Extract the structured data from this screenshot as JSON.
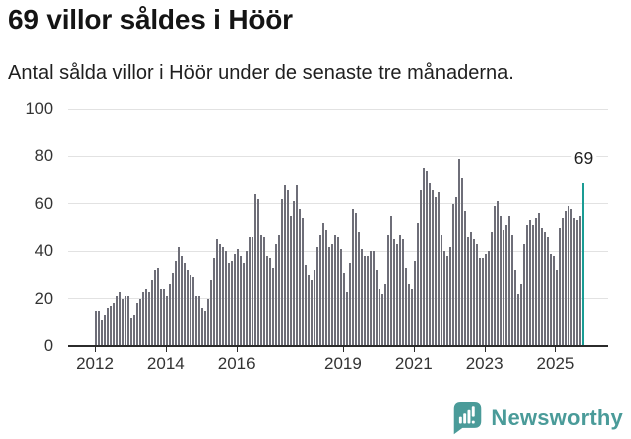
{
  "header": {
    "title": "69 villor såldes i Höör",
    "subtitle": "Antal sålda villor i Höör under de senaste tre månaderna."
  },
  "chart_data": {
    "type": "bar",
    "title": "69 villor såldes i Höör",
    "subtitle": "Antal sålda villor i Höör under de senaste tre månaderna.",
    "ylabel": "",
    "xlabel": "",
    "ylim": [
      0,
      100
    ],
    "yticks": [
      0,
      20,
      40,
      60,
      80,
      100
    ],
    "grid": true,
    "x_start_month": "2012-01",
    "x_end_month": "2025-10",
    "x_tick_labels": [
      "2012",
      "2014",
      "2016",
      "2019",
      "2021",
      "2023",
      "2025"
    ],
    "x_tick_indices": [
      0,
      24,
      48,
      84,
      108,
      132,
      156
    ],
    "values": [
      15,
      15,
      11,
      13,
      16,
      17,
      18,
      21,
      23,
      20,
      21,
      21,
      12,
      13,
      18,
      20,
      23,
      24,
      23,
      28,
      32,
      33,
      24,
      24,
      21,
      26,
      31,
      36,
      42,
      38,
      35,
      32,
      30,
      29,
      21,
      21,
      16,
      15,
      20,
      28,
      37,
      45,
      43,
      42,
      40,
      35,
      36,
      39,
      41,
      38,
      35,
      40,
      46,
      46,
      64,
      62,
      47,
      46,
      38,
      37,
      33,
      43,
      47,
      62,
      68,
      66,
      55,
      61,
      68,
      58,
      54,
      34,
      30,
      28,
      32,
      42,
      47,
      52,
      49,
      42,
      43,
      47,
      46,
      41,
      31,
      23,
      35,
      58,
      56,
      48,
      41,
      38,
      38,
      40,
      40,
      32,
      24,
      22,
      26,
      47,
      55,
      45,
      43,
      47,
      45,
      33,
      26,
      24,
      36,
      52,
      66,
      75,
      74,
      69,
      66,
      63,
      65,
      47,
      40,
      38,
      42,
      60,
      63,
      79,
      71,
      57,
      46,
      48,
      45,
      43,
      37,
      37,
      39,
      40,
      48,
      59,
      61,
      55,
      49,
      51,
      55,
      47,
      32,
      22,
      26,
      43,
      51,
      53,
      51,
      54,
      56,
      50,
      48,
      46,
      39,
      38,
      32,
      50,
      54,
      57,
      59,
      58,
      54,
      53,
      55,
      69
    ],
    "bar_color": "#6e6e78",
    "highlight": {
      "index": 165,
      "value": 69,
      "label": "69",
      "color": "#1a9c94"
    },
    "legend_position": "none"
  },
  "footer": {
    "brand": "Newsworthy",
    "brand_color": "#4a9b99",
    "logo_icon": "newsworthy-bubble-chart-icon"
  }
}
